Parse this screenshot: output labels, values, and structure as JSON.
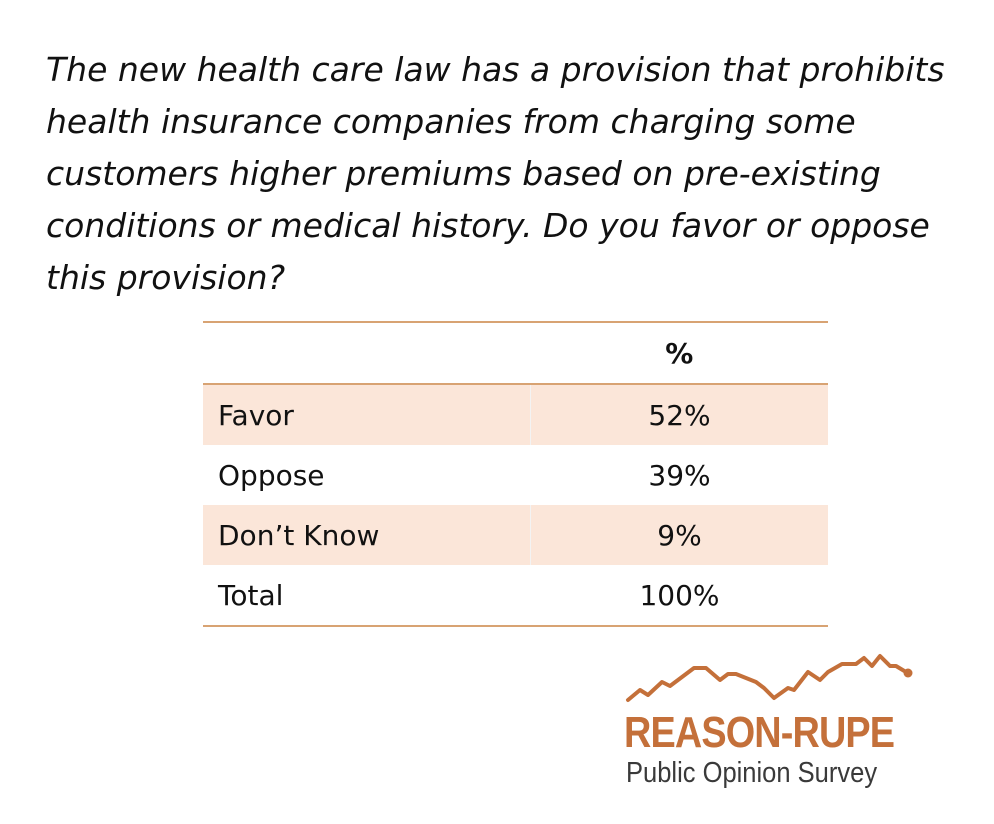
{
  "question": "The new health care law has a provision that prohibits health insurance companies from charging some customers higher premiums based on pre-existing conditions or medical history. Do you favor or oppose this provision?",
  "table": {
    "header": {
      "label": "",
      "value": "%"
    },
    "rows": [
      {
        "label": "Favor",
        "value": "52%"
      },
      {
        "label": "Oppose",
        "value": "39%"
      },
      {
        "label": "Don’t Know",
        "value": "9%"
      },
      {
        "label": "Total",
        "value": "100%"
      }
    ]
  },
  "logo": {
    "title": "REASON-RUPE",
    "subtitle": "Public Opinion Survey",
    "accent_color": "#c4703a",
    "icon": "mountain-line-icon"
  }
}
